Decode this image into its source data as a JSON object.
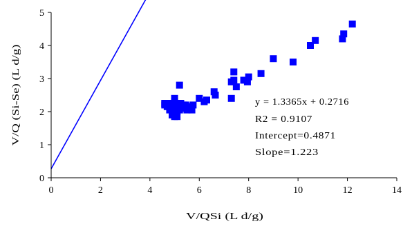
{
  "chart_data": {
    "type": "scatter",
    "title": "",
    "xlabel": "V/QSi (L d/g)",
    "ylabel": "V/Q (Si-Se) (L d/g)",
    "xlim": [
      0,
      14
    ],
    "ylim": [
      0,
      5
    ],
    "xticks": [
      0,
      2,
      4,
      6,
      8,
      10,
      12,
      14
    ],
    "yticks": [
      0,
      1,
      2,
      3,
      4,
      5
    ],
    "xtick_labels": [
      "0",
      "2",
      "4",
      "6",
      "8",
      "10",
      "12",
      "14"
    ],
    "ytick_labels": [
      "0",
      "1",
      "2",
      "3",
      "4",
      "5"
    ],
    "grid": false,
    "legend": "none",
    "marker_color": "#0000FF",
    "line_color": "#0000FF",
    "series": [
      {
        "points": [
          [
            4.6,
            2.2
          ],
          [
            4.6,
            2.25
          ],
          [
            4.7,
            2.15
          ],
          [
            4.75,
            2.25
          ],
          [
            4.8,
            2.05
          ],
          [
            4.85,
            2.2
          ],
          [
            4.9,
            1.9
          ],
          [
            4.9,
            2.1
          ],
          [
            4.95,
            2.25
          ],
          [
            5.0,
            1.85
          ],
          [
            5.0,
            2.0
          ],
          [
            5.0,
            2.3
          ],
          [
            5.0,
            2.4
          ],
          [
            5.05,
            2.15
          ],
          [
            5.1,
            2.0
          ],
          [
            5.1,
            1.85
          ],
          [
            5.15,
            2.2
          ],
          [
            5.2,
            2.05
          ],
          [
            5.2,
            2.8
          ],
          [
            5.25,
            2.25
          ],
          [
            5.3,
            2.1
          ],
          [
            5.35,
            2.2
          ],
          [
            5.4,
            2.15
          ],
          [
            5.45,
            2.2
          ],
          [
            5.5,
            2.05
          ],
          [
            5.55,
            2.15
          ],
          [
            5.7,
            2.05
          ],
          [
            5.75,
            2.2
          ],
          [
            6.0,
            2.4
          ],
          [
            6.2,
            2.3
          ],
          [
            6.3,
            2.35
          ],
          [
            6.6,
            2.6
          ],
          [
            6.65,
            2.5
          ],
          [
            7.3,
            2.4
          ],
          [
            7.3,
            2.9
          ],
          [
            7.4,
            2.95
          ],
          [
            7.4,
            3.2
          ],
          [
            7.5,
            2.75
          ],
          [
            7.8,
            2.95
          ],
          [
            7.95,
            2.9
          ],
          [
            8.0,
            3.05
          ],
          [
            8.5,
            3.15
          ],
          [
            9.0,
            3.6
          ],
          [
            9.8,
            3.5
          ],
          [
            10.5,
            4.0
          ],
          [
            10.7,
            4.15
          ],
          [
            11.8,
            4.2
          ],
          [
            11.85,
            4.35
          ],
          [
            12.2,
            4.65
          ]
        ]
      }
    ],
    "trendline": {
      "slope": 1.3365,
      "intercept": 0.2716,
      "x_range": [
        0,
        12.4
      ]
    },
    "annotations": [
      "y = 1.3365x + 0.2716",
      "R2 = 0.9107",
      "Intercept=0.4871",
      "Slope=1.223"
    ]
  }
}
